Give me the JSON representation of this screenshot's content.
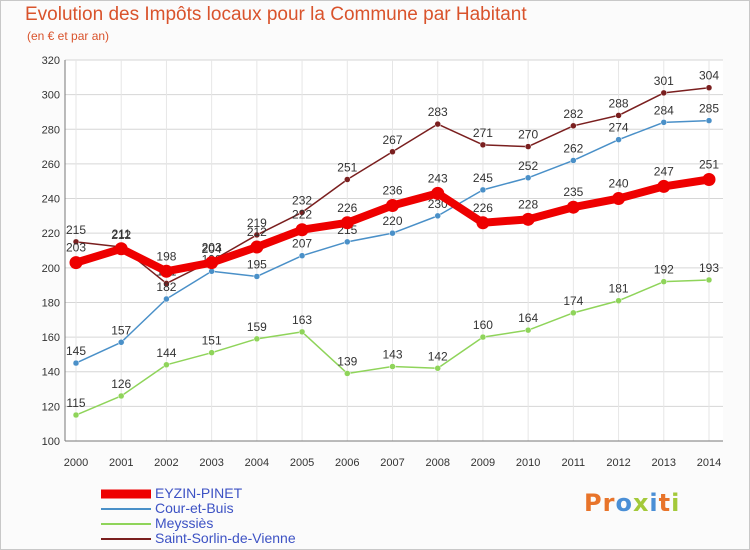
{
  "title": "Evolution des Impôts locaux pour la Commune par Habitant",
  "subtitle": "(en € et par an)",
  "logo_text": "Proxiti",
  "chart_data": {
    "type": "line",
    "title": "Evolution des Impôts locaux pour la Commune par Habitant",
    "subtitle": "(en € et par an)",
    "xlabel": "",
    "ylabel": "",
    "x": [
      2000,
      2001,
      2002,
      2003,
      2004,
      2005,
      2006,
      2007,
      2008,
      2009,
      2010,
      2011,
      2012,
      2013,
      2014
    ],
    "ylim": [
      100,
      320
    ],
    "yticks": [
      100,
      120,
      140,
      160,
      180,
      200,
      220,
      240,
      260,
      280,
      300,
      320
    ],
    "grid": true,
    "series": [
      {
        "name": "Saint-Sorlin-de-Vienne",
        "color": "#7a1f1f",
        "values": [
          215,
          212,
          191,
          204,
          219,
          232,
          251,
          267,
          283,
          271,
          270,
          282,
          288,
          301,
          304
        ]
      },
      {
        "name": "Cour-et-Buis",
        "color": "#4a90c8",
        "values": [
          145,
          157,
          182,
          198,
          195,
          207,
          215,
          220,
          230,
          245,
          252,
          262,
          274,
          284,
          285
        ]
      },
      {
        "name": "Meyssiès",
        "color": "#8fd45a",
        "values": [
          115,
          126,
          144,
          151,
          159,
          163,
          139,
          143,
          142,
          160,
          164,
          174,
          181,
          192,
          193
        ]
      },
      {
        "name": "EYZIN-PINET",
        "color": "#ee0000",
        "values": [
          203,
          211,
          198,
          203,
          212,
          222,
          226,
          236,
          243,
          226,
          228,
          235,
          240,
          247,
          251
        ]
      }
    ]
  },
  "legend": [
    {
      "name": "EYZIN-PINET",
      "color": "#ee0000"
    },
    {
      "name": "Cour-et-Buis",
      "color": "#4a90c8"
    },
    {
      "name": "Meyssiès",
      "color": "#8fd45a"
    },
    {
      "name": "Saint-Sorlin-de-Vienne",
      "color": "#7a1f1f"
    }
  ]
}
